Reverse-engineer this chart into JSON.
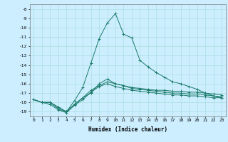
{
  "title": "",
  "xlabel": "Humidex (Indice chaleur)",
  "ylabel": "",
  "background_color": "#cceeff",
  "grid_color": "#aadddd",
  "line_color": "#1a7a6a",
  "x_ticks": [
    0,
    1,
    2,
    3,
    4,
    5,
    6,
    7,
    8,
    9,
    10,
    11,
    12,
    13,
    14,
    15,
    16,
    17,
    18,
    19,
    20,
    21,
    22,
    23
  ],
  "ylim": [
    -19.5,
    -7.5
  ],
  "xlim": [
    -0.5,
    23.5
  ],
  "curves": [
    {
      "x": [
        0,
        1,
        2,
        3,
        4,
        5,
        6,
        7,
        8,
        9,
        10,
        11,
        12,
        13,
        14,
        15,
        16,
        17,
        18,
        19,
        20,
        21,
        22,
        23
      ],
      "y": [
        -17.7,
        -18.0,
        -18.0,
        -18.5,
        -19.0,
        -18.2,
        -17.5,
        -17.0,
        -16.0,
        -15.5,
        -16.0,
        -16.2,
        -16.4,
        -16.5,
        -16.6,
        -16.7,
        -16.7,
        -16.8,
        -16.8,
        -16.9,
        -16.9,
        -17.0,
        -17.1,
        -17.2
      ]
    },
    {
      "x": [
        0,
        1,
        2,
        3,
        4,
        5,
        6,
        7,
        8,
        9,
        10,
        11,
        12,
        13,
        14,
        15,
        16,
        17,
        18,
        19,
        20,
        21,
        22,
        23
      ],
      "y": [
        -17.7,
        -18.0,
        -18.0,
        -18.7,
        -19.0,
        -18.2,
        -17.5,
        -16.7,
        -16.2,
        -15.8,
        -16.0,
        -16.2,
        -16.5,
        -16.6,
        -16.7,
        -16.8,
        -16.9,
        -17.0,
        -17.0,
        -17.1,
        -17.1,
        -17.2,
        -17.3,
        -17.4
      ]
    },
    {
      "x": [
        0,
        1,
        2,
        3,
        4,
        5,
        6,
        7,
        8,
        9,
        10,
        11,
        12,
        13,
        14,
        15,
        16,
        17,
        18,
        19,
        20,
        21,
        22,
        23
      ],
      "y": [
        -17.7,
        -18.0,
        -18.2,
        -18.8,
        -19.1,
        -18.3,
        -17.7,
        -16.9,
        -16.3,
        -16.0,
        -16.3,
        -16.5,
        -16.7,
        -16.8,
        -16.9,
        -17.0,
        -17.1,
        -17.2,
        -17.2,
        -17.3,
        -17.3,
        -17.4,
        -17.5,
        -17.5
      ]
    },
    {
      "x": [
        0,
        1,
        2,
        3,
        4,
        5,
        6,
        7,
        8,
        9,
        10,
        11,
        12,
        13,
        14,
        15,
        16,
        17,
        18,
        19,
        20,
        21,
        22,
        23
      ],
      "y": [
        -17.7,
        -18.0,
        -18.0,
        -18.5,
        -19.0,
        -17.8,
        -16.4,
        -13.8,
        -11.2,
        -9.5,
        -8.5,
        -10.7,
        -11.1,
        -13.5,
        -14.2,
        -14.8,
        -15.3,
        -15.8,
        -16.0,
        -16.3,
        -16.6,
        -17.0,
        -17.3,
        -17.5
      ]
    }
  ]
}
